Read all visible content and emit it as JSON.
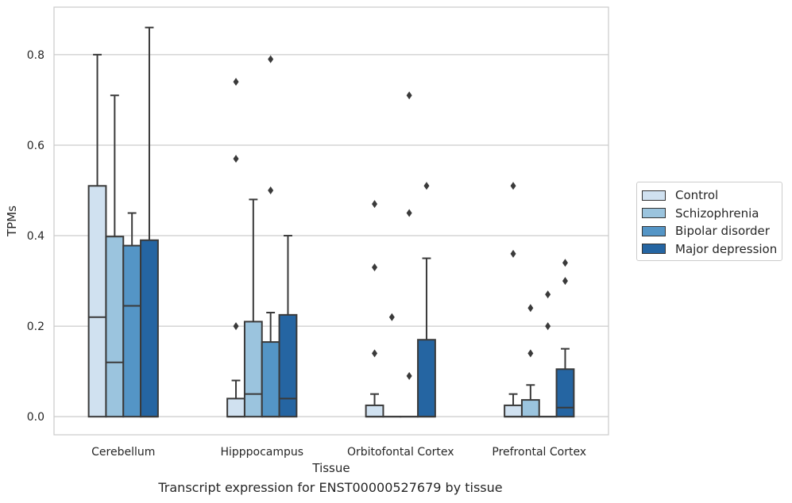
{
  "caption": "Transcript expression for ENST00000527679 by tissue",
  "chart_data": {
    "type": "box",
    "xlabel": "Tissue",
    "ylabel": "TPMs",
    "ylim": [
      -0.04,
      0.905
    ],
    "yticks": [
      0.0,
      0.2,
      0.4,
      0.6,
      0.8
    ],
    "ytick_labels": [
      "0.0",
      "0.2",
      "0.4",
      "0.6",
      "0.8"
    ],
    "grid": "horizontal",
    "legend_position": "right",
    "categories": [
      "Cerebellum",
      "Hipppocampus",
      "Orbitofontal Cortex",
      "Prefrontal Cortex"
    ],
    "series": [
      {
        "name": "Control",
        "color": "#d0e1f0",
        "boxes": [
          {
            "q1": 0.0,
            "median": 0.22,
            "q3": 0.51,
            "whisker_low": 0.0,
            "whisker_high": 0.8,
            "outliers": []
          },
          {
            "q1": 0.0,
            "median": 0.0,
            "q3": 0.04,
            "whisker_low": 0.0,
            "whisker_high": 0.08,
            "outliers": [
              0.2,
              0.57,
              0.74
            ]
          },
          {
            "q1": 0.0,
            "median": 0.0,
            "q3": 0.025,
            "whisker_low": 0.0,
            "whisker_high": 0.05,
            "outliers": [
              0.14,
              0.33,
              0.47
            ]
          },
          {
            "q1": 0.0,
            "median": 0.0,
            "q3": 0.025,
            "whisker_low": 0.0,
            "whisker_high": 0.05,
            "outliers": [
              0.36,
              0.51
            ]
          }
        ]
      },
      {
        "name": "Schizophrenia",
        "color": "#9bc4de",
        "boxes": [
          {
            "q1": 0.0,
            "median": 0.12,
            "q3": 0.398,
            "whisker_low": 0.0,
            "whisker_high": 0.71,
            "outliers": []
          },
          {
            "q1": 0.0,
            "median": 0.05,
            "q3": 0.21,
            "whisker_low": 0.0,
            "whisker_high": 0.48,
            "outliers": []
          },
          {
            "q1": 0.0,
            "median": 0.0,
            "q3": 0.0,
            "whisker_low": 0.0,
            "whisker_high": 0.0,
            "outliers": [
              0.22
            ]
          },
          {
            "q1": 0.0,
            "median": 0.0,
            "q3": 0.037,
            "whisker_low": 0.0,
            "whisker_high": 0.07,
            "outliers": [
              0.14,
              0.24
            ]
          }
        ]
      },
      {
        "name": "Bipolar disorder",
        "color": "#5495c6",
        "boxes": [
          {
            "q1": 0.0,
            "median": 0.245,
            "q3": 0.378,
            "whisker_low": 0.0,
            "whisker_high": 0.45,
            "outliers": []
          },
          {
            "q1": 0.0,
            "median": 0.0,
            "q3": 0.165,
            "whisker_low": 0.0,
            "whisker_high": 0.23,
            "outliers": [
              0.5,
              0.79
            ]
          },
          {
            "q1": 0.0,
            "median": 0.0,
            "q3": 0.0,
            "whisker_low": 0.0,
            "whisker_high": 0.0,
            "outliers": [
              0.09,
              0.45,
              0.71
            ]
          },
          {
            "q1": 0.0,
            "median": 0.0,
            "q3": 0.0,
            "whisker_low": 0.0,
            "whisker_high": 0.0,
            "outliers": [
              0.2,
              0.27
            ]
          }
        ]
      },
      {
        "name": "Major depression",
        "color": "#2565a2",
        "boxes": [
          {
            "q1": 0.0,
            "median": 0.0,
            "q3": 0.39,
            "whisker_low": 0.0,
            "whisker_high": 0.86,
            "outliers": []
          },
          {
            "q1": 0.0,
            "median": 0.04,
            "q3": 0.225,
            "whisker_low": 0.0,
            "whisker_high": 0.4,
            "outliers": []
          },
          {
            "q1": 0.0,
            "median": 0.0,
            "q3": 0.17,
            "whisker_low": 0.0,
            "whisker_high": 0.35,
            "outliers": [
              0.51
            ]
          },
          {
            "q1": 0.0,
            "median": 0.02,
            "q3": 0.105,
            "whisker_low": 0.0,
            "whisker_high": 0.15,
            "outliers": [
              0.3,
              0.34
            ]
          }
        ]
      }
    ]
  }
}
